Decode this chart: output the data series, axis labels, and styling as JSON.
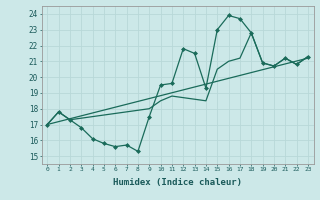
{
  "xlabel": "Humidex (Indice chaleur)",
  "bg_color": "#cce8e8",
  "grid_color": "#b8d8d8",
  "line_color": "#1a6b5a",
  "xlim": [
    -0.5,
    23.5
  ],
  "ylim": [
    14.5,
    24.5
  ],
  "xticks": [
    0,
    1,
    2,
    3,
    4,
    5,
    6,
    7,
    8,
    9,
    10,
    11,
    12,
    13,
    14,
    15,
    16,
    17,
    18,
    19,
    20,
    21,
    22,
    23
  ],
  "yticks": [
    15,
    16,
    17,
    18,
    19,
    20,
    21,
    22,
    23,
    24
  ],
  "series": [
    {
      "x": [
        0,
        1,
        2,
        3,
        4,
        5,
        6,
        7,
        8,
        9,
        10,
        11,
        12,
        13,
        14,
        15,
        16,
        17,
        18,
        19,
        20,
        21,
        22,
        23
      ],
      "y": [
        17.0,
        17.8,
        17.3,
        16.8,
        16.1,
        15.8,
        15.6,
        15.7,
        15.3,
        17.5,
        19.5,
        19.6,
        21.8,
        21.5,
        19.3,
        23.0,
        23.9,
        23.7,
        22.8,
        20.9,
        20.7,
        21.2,
        20.8,
        21.3
      ],
      "marker": "D",
      "markersize": 2.0,
      "linewidth": 0.9
    },
    {
      "x": [
        0,
        1,
        2,
        9,
        10,
        11,
        14,
        15,
        16,
        17,
        18,
        19,
        20,
        21,
        22,
        23
      ],
      "y": [
        17.0,
        17.8,
        17.3,
        18.0,
        18.5,
        18.8,
        18.5,
        20.5,
        21.0,
        21.2,
        22.8,
        20.9,
        20.7,
        21.2,
        20.8,
        21.3
      ],
      "marker": null,
      "markersize": 0,
      "linewidth": 0.9
    },
    {
      "x": [
        0,
        23
      ],
      "y": [
        17.0,
        21.2
      ],
      "marker": null,
      "markersize": 0,
      "linewidth": 0.9
    }
  ]
}
